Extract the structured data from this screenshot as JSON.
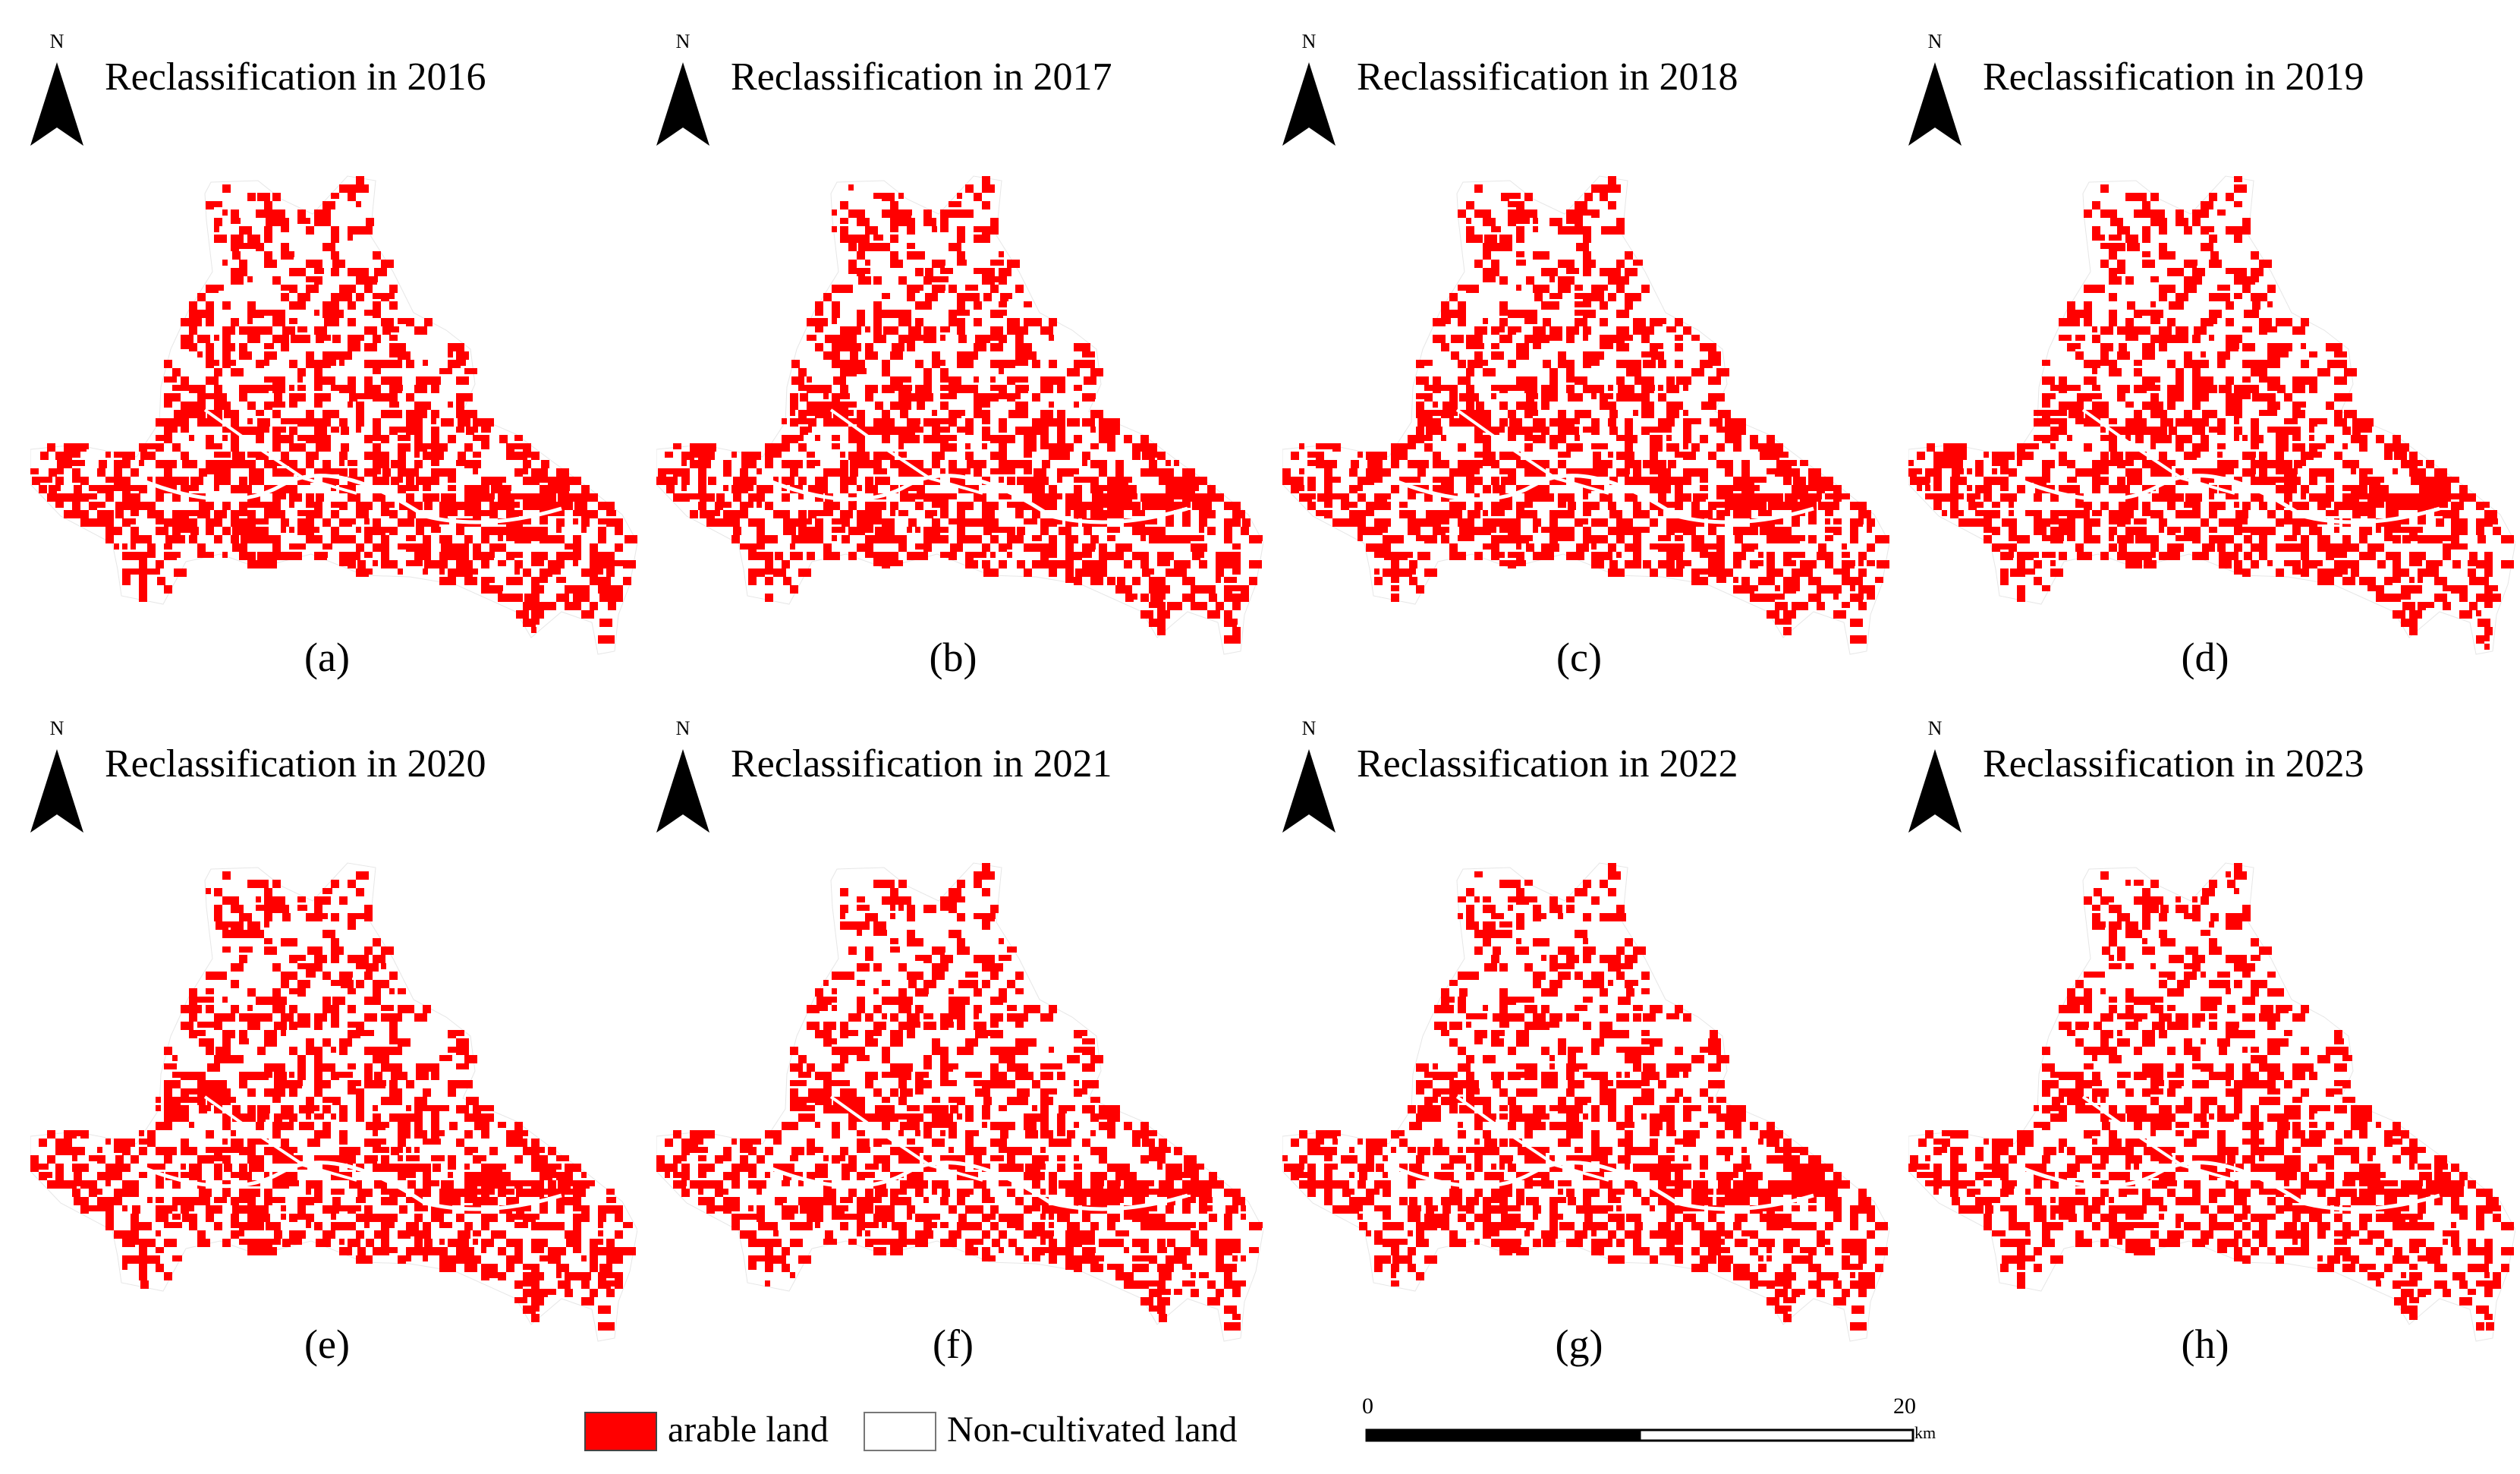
{
  "colors": {
    "arable": "#ff0000",
    "non_cultivated": "#ffffff",
    "outline": "#888888"
  },
  "panels": [
    {
      "title": "Reclassification in 2016",
      "label": "(a)",
      "north": "N",
      "icon": "north-arrow-icon"
    },
    {
      "title": "Reclassification in 2017",
      "label": "(b)",
      "north": "N",
      "icon": "north-arrow-icon"
    },
    {
      "title": "Reclassification in 2018",
      "label": "(c)",
      "north": "N",
      "icon": "north-arrow-icon"
    },
    {
      "title": "Reclassification in 2019",
      "label": "(d)",
      "north": "N",
      "icon": "north-arrow-icon"
    },
    {
      "title": "Reclassification in 2020",
      "label": "(e)",
      "north": "N",
      "icon": "north-arrow-icon"
    },
    {
      "title": "Reclassification in 2021",
      "label": "(f)",
      "north": "N",
      "icon": "north-arrow-icon"
    },
    {
      "title": "Reclassification in 2022",
      "label": "(g)",
      "north": "N",
      "icon": "north-arrow-icon"
    },
    {
      "title": "Reclassification in 2023",
      "label": "(h)",
      "north": "N",
      "icon": "north-arrow-icon"
    }
  ],
  "legend": {
    "arable_label": "arable land",
    "non_cultivated_label": "Non-cultivated land"
  },
  "scale": {
    "start": "0",
    "end": "20",
    "unit": "km"
  }
}
